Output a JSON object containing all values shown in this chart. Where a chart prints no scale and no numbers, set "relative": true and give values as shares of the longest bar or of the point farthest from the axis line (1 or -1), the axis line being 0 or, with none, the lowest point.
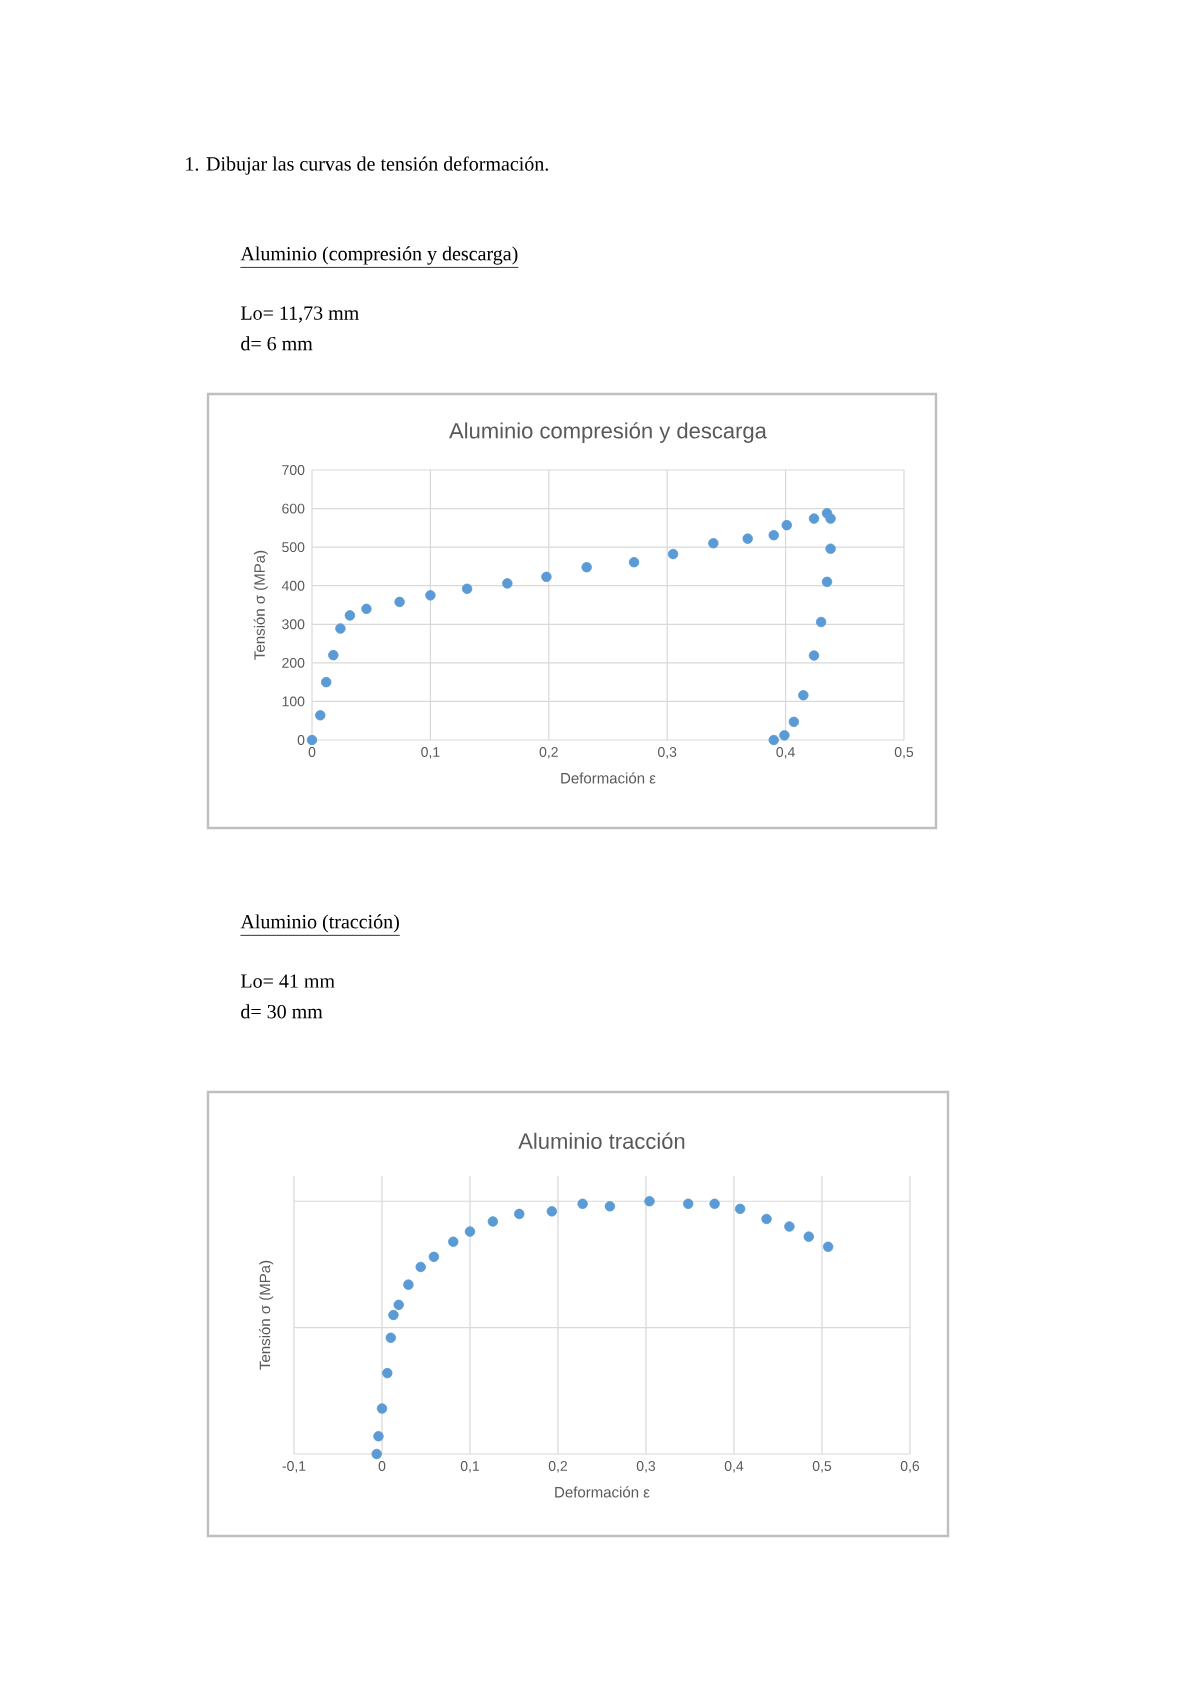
{
  "chart_data": [
    {
      "type": "scatter",
      "title": "Aluminio compresión y descarga",
      "xlabel": "Deformación ε",
      "ylabel": "Tensión σ (MPa)",
      "annotations": [
        "1. Dibujar las curvas de tensión deformación.",
        "Aluminio (compresión y descarga)",
        "Lo= 11,73 mm",
        "d= 6 mm"
      ],
      "x": [
        0,
        0.007,
        0.012,
        0.018,
        0.024,
        0.032,
        0.046,
        0.074,
        0.1,
        0.131,
        0.165,
        0.198,
        0.232,
        0.272,
        0.305,
        0.339,
        0.368,
        0.39,
        0.401,
        0.424,
        0.435,
        0.438,
        0.438,
        0.435,
        0.43,
        0.424,
        0.415,
        0.407,
        0.399,
        0.39
      ],
      "series": [
        {
          "color": "#5b9bd5",
          "values": [
            0,
            64,
            150,
            220,
            289,
            323,
            340,
            358,
            375,
            392,
            406,
            423,
            448,
            461,
            482,
            510,
            522,
            531,
            557,
            574,
            588,
            574,
            496,
            410,
            306,
            219,
            116,
            47,
            12,
            0
          ]
        }
      ],
      "xlim": [
        0,
        0.5
      ],
      "xticks": [
        0,
        {
          "value": 0.1,
          "label": "0,1"
        },
        {
          "value": 0.2,
          "label": "0,2"
        },
        {
          "value": 0.3,
          "label": "0,3"
        },
        {
          "value": 0.4,
          "label": "0,4"
        },
        {
          "value": 0.5,
          "label": "0,5"
        }
      ],
      "ylim": [
        0,
        700
      ],
      "yticks": [
        0,
        100,
        200,
        300,
        400,
        500,
        600,
        700
      ],
      "grid": true
    },
    {
      "type": "scatter",
      "title": "Aluminio tracción",
      "xlabel": "Deformación ε",
      "ylabel": "Tensión σ (MPa)",
      "annotations": [
        "Aluminio (tracción)",
        "Lo= 41 mm",
        "d= 30 mm"
      ],
      "x": [
        -0.006,
        -0.004,
        0,
        0.006,
        0.01,
        0.013,
        0.019,
        0.03,
        0.044,
        0.059,
        0.081,
        0.1,
        0.126,
        0.156,
        0.193,
        0.228,
        0.259,
        0.304,
        0.348,
        0.378,
        0.407,
        0.437,
        0.463,
        0.485,
        0.507
      ],
      "series": [
        {
          "color": "#5b9bd5",
          "values": [
            0,
            0.07,
            0.18,
            0.32,
            0.46,
            0.55,
            0.59,
            0.67,
            0.74,
            0.78,
            0.84,
            0.88,
            0.92,
            0.95,
            0.96,
            0.99,
            0.98,
            1,
            0.99,
            0.99,
            0.97,
            0.93,
            0.9,
            0.86,
            0.82
          ]
        }
      ],
      "relative": true,
      "tick_labels": "x",
      "xlim": [
        -0.1,
        0.6
      ],
      "xticks": [
        {
          "value": -0.1,
          "label": "-0,1"
        },
        0,
        {
          "value": 0.1,
          "label": "0,1"
        },
        {
          "value": 0.2,
          "label": "0,2"
        },
        {
          "value": 0.3,
          "label": "0,3"
        },
        {
          "value": 0.4,
          "label": "0,4"
        },
        {
          "value": 0.5,
          "label": "0,5"
        },
        {
          "value": 0.6,
          "label": "0,6"
        }
      ],
      "grid": true
    }
  ]
}
